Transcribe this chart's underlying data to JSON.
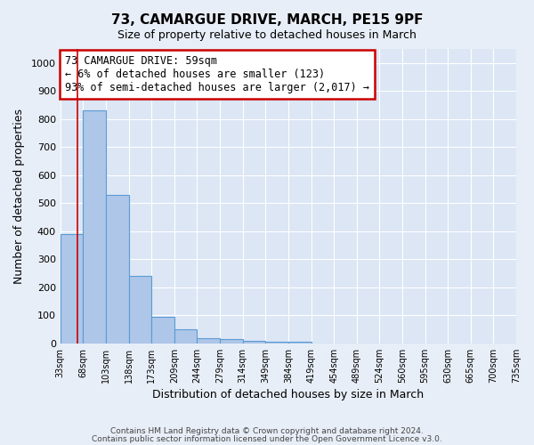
{
  "title": "73, CAMARGUE DRIVE, MARCH, PE15 9PF",
  "subtitle": "Size of property relative to detached houses in March",
  "xlabel": "Distribution of detached houses by size in March",
  "ylabel": "Number of detached properties",
  "bar_values": [
    390,
    830,
    530,
    240,
    95,
    50,
    20,
    15,
    10,
    7,
    5,
    0,
    0,
    0,
    0,
    0,
    0,
    0,
    0,
    0
  ],
  "bin_labels": [
    "33sqm",
    "68sqm",
    "103sqm",
    "138sqm",
    "173sqm",
    "209sqm",
    "244sqm",
    "279sqm",
    "314sqm",
    "349sqm",
    "384sqm",
    "419sqm",
    "454sqm",
    "489sqm",
    "524sqm",
    "560sqm",
    "595sqm",
    "630sqm",
    "665sqm",
    "700sqm",
    "735sqm"
  ],
  "bar_color": "#aec6e8",
  "bar_edge_color": "#5b9bd5",
  "ylim": [
    0,
    1050
  ],
  "yticks": [
    0,
    100,
    200,
    300,
    400,
    500,
    600,
    700,
    800,
    900,
    1000
  ],
  "annotation_title": "73 CAMARGUE DRIVE: 59sqm",
  "annotation_line1": "← 6% of detached houses are smaller (123)",
  "annotation_line2": "93% of semi-detached houses are larger (2,017) →",
  "annotation_box_color": "#ffffff",
  "annotation_box_edge_color": "#cc0000",
  "footer1": "Contains HM Land Registry data © Crown copyright and database right 2024.",
  "footer2": "Contains public sector information licensed under the Open Government Licence v3.0.",
  "background_color": "#e8eef7",
  "plot_background_color": "#dce6f5",
  "grid_color": "#ffffff",
  "figsize": [
    6.0,
    5.0
  ],
  "dpi": 100
}
